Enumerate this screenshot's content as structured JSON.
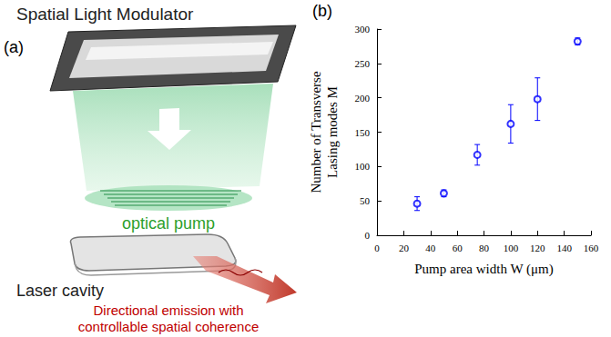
{
  "figure": {
    "panel_a": {
      "label": "(a)",
      "slm": "Spatial Light Modulator",
      "pump": "optical pump",
      "cavity": "Laser cavity",
      "emission": "Directional emission with controllable spatial coherence"
    },
    "panel_b": {
      "label": "(b)"
    }
  },
  "chart_data": {
    "type": "scatter",
    "x_label": "Pump area width W (μm)",
    "y_label": "Number of Transverse\nLasing modes M",
    "x": [
      30,
      50,
      75,
      100,
      120,
      150
    ],
    "values": [
      46,
      61,
      117,
      162,
      198,
      282
    ],
    "errors": [
      10,
      5,
      15,
      28,
      31,
      5
    ],
    "color": "#0000ff",
    "marker": "open circle",
    "xlim": [
      0,
      160
    ],
    "xticks": [
      0,
      20,
      40,
      60,
      80,
      100,
      120,
      140,
      160
    ],
    "ylim": [
      0,
      300
    ],
    "yticks": [
      0,
      50,
      100,
      150,
      200,
      250,
      300
    ],
    "grid": false
  }
}
